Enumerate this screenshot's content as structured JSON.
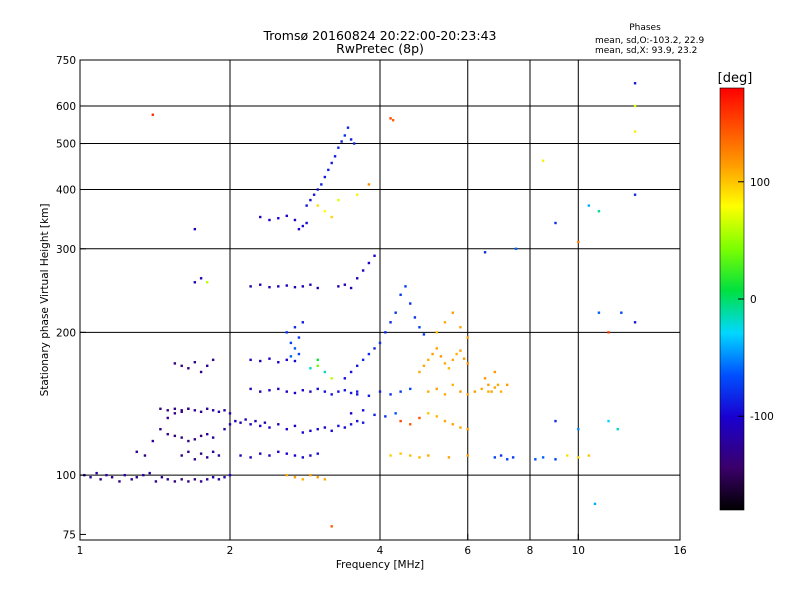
{
  "chart_data": {
    "type": "scatter",
    "title": "Tromsø 20160824 20:22:00-20:23:43",
    "subtitle": "RwPretec (8p)",
    "xlabel": "Frequency [MHz]",
    "ylabel": "Stationary phase Virtual Height [km]",
    "x_scale": "log",
    "y_scale": "log",
    "xlim": [
      1,
      16
    ],
    "ylim": [
      73,
      750
    ],
    "x_ticks": [
      {
        "value": 1,
        "label": "1"
      },
      {
        "value": 2,
        "label": "2"
      },
      {
        "value": 4,
        "label": "4"
      },
      {
        "value": 6,
        "label": "6"
      },
      {
        "value": 8,
        "label": "8"
      },
      {
        "value": 10,
        "label": "10"
      },
      {
        "value": 16,
        "label": "16"
      }
    ],
    "y_ticks": [
      {
        "value": 75,
        "label": "75"
      },
      {
        "value": 100,
        "label": "100"
      },
      {
        "value": 200,
        "label": "200"
      },
      {
        "value": 300,
        "label": "300"
      },
      {
        "value": 400,
        "label": "400"
      },
      {
        "value": 500,
        "label": "500"
      },
      {
        "value": 600,
        "label": "600"
      },
      {
        "value": 750,
        "label": "750"
      }
    ],
    "grid_x": [
      2,
      4,
      6,
      8,
      10
    ],
    "grid_y": [
      100,
      200,
      300,
      400,
      500,
      600
    ],
    "grid": true,
    "stats_header": "Phases",
    "stats_lines": [
      "mean, sd,O:-103.2, 22.9",
      "mean, sd,X:  93.9, 23.2"
    ],
    "colorbar": {
      "label": "[deg]",
      "range": [
        -180,
        180
      ],
      "ticks": [
        {
          "value": 100,
          "label": "100"
        },
        {
          "value": 0,
          "label": "0"
        },
        {
          "value": -100,
          "label": "-100"
        }
      ]
    },
    "points": [
      [
        1.02,
        100,
        -120
      ],
      [
        1.05,
        99,
        -125
      ],
      [
        1.08,
        101,
        -118
      ],
      [
        1.1,
        98,
        -130
      ],
      [
        1.13,
        100,
        -122
      ],
      [
        1.16,
        99,
        -128
      ],
      [
        1.2,
        97,
        -135
      ],
      [
        1.23,
        100,
        -120
      ],
      [
        1.27,
        98,
        -126
      ],
      [
        1.3,
        99,
        -131
      ],
      [
        1.34,
        100,
        -119
      ],
      [
        1.38,
        101,
        -124
      ],
      [
        1.42,
        97,
        -133
      ],
      [
        1.46,
        99,
        -127
      ],
      [
        1.5,
        98,
        -129
      ],
      [
        1.55,
        97,
        -136
      ],
      [
        1.6,
        98,
        -132
      ],
      [
        1.65,
        97,
        -138
      ],
      [
        1.7,
        98,
        -134
      ],
      [
        1.75,
        97,
        -130
      ],
      [
        1.8,
        98,
        -126
      ],
      [
        1.85,
        99,
        -121
      ],
      [
        1.9,
        98,
        -124
      ],
      [
        1.95,
        99,
        -118
      ],
      [
        2.0,
        100,
        -115
      ],
      [
        1.3,
        112,
        -128
      ],
      [
        1.35,
        110,
        -132
      ],
      [
        1.4,
        118,
        -125
      ],
      [
        1.45,
        125,
        -130
      ],
      [
        1.5,
        132,
        -127
      ],
      [
        1.55,
        135,
        -133
      ],
      [
        1.6,
        137,
        -129
      ],
      [
        1.65,
        138,
        -131
      ],
      [
        1.7,
        137,
        -126
      ],
      [
        1.75,
        136,
        -128
      ],
      [
        1.8,
        138,
        -122
      ],
      [
        1.85,
        137,
        -118
      ],
      [
        1.9,
        136,
        -115
      ],
      [
        1.95,
        137,
        -120
      ],
      [
        2.0,
        135,
        -117
      ],
      [
        1.45,
        138,
        -134
      ],
      [
        1.5,
        137,
        -135
      ],
      [
        1.55,
        138,
        -132
      ],
      [
        1.6,
        136,
        -137
      ],
      [
        1.65,
        138,
        -131
      ],
      [
        1.55,
        172,
        -138
      ],
      [
        1.6,
        170,
        -135
      ],
      [
        1.65,
        168,
        -137
      ],
      [
        1.7,
        173,
        -132
      ],
      [
        1.75,
        165,
        -136
      ],
      [
        1.8,
        170,
        -128
      ],
      [
        1.85,
        175,
        -133
      ],
      [
        1.5,
        122,
        -136
      ],
      [
        1.55,
        121,
        -139
      ],
      [
        1.6,
        120,
        -133
      ],
      [
        1.65,
        118,
        -138
      ],
      [
        1.7,
        119,
        -132
      ],
      [
        1.75,
        121,
        -137
      ],
      [
        1.8,
        122,
        -129
      ],
      [
        1.85,
        120,
        -125
      ],
      [
        1.6,
        110,
        -133
      ],
      [
        1.65,
        112,
        -135
      ],
      [
        1.7,
        108,
        -131
      ],
      [
        1.75,
        111,
        -134
      ],
      [
        1.8,
        109,
        -128
      ],
      [
        1.85,
        112,
        -126
      ],
      [
        1.9,
        110,
        -122
      ],
      [
        1.95,
        125,
        -120
      ],
      [
        2.0,
        128,
        -118
      ],
      [
        2.05,
        130,
        -112
      ],
      [
        2.1,
        129,
        -114
      ],
      [
        2.15,
        131,
        -110
      ],
      [
        2.2,
        128,
        -108
      ],
      [
        2.25,
        130,
        -112
      ],
      [
        2.3,
        127,
        -106
      ],
      [
        2.35,
        129,
        -110
      ],
      [
        2.4,
        126,
        -104
      ],
      [
        2.5,
        128,
        -108
      ],
      [
        2.6,
        125,
        -102
      ],
      [
        2.7,
        127,
        -105
      ],
      [
        2.8,
        123,
        -98
      ],
      [
        2.9,
        124,
        -100
      ],
      [
        3.0,
        125,
        -96
      ],
      [
        3.1,
        126,
        -102
      ],
      [
        3.2,
        124,
        -98
      ],
      [
        3.3,
        127,
        -94
      ],
      [
        3.4,
        126,
        -97
      ],
      [
        3.5,
        128,
        -92
      ],
      [
        3.6,
        130,
        -95
      ],
      [
        3.7,
        129,
        -90
      ],
      [
        2.1,
        110,
        -112
      ],
      [
        2.2,
        109,
        -110
      ],
      [
        2.3,
        111,
        -108
      ],
      [
        2.4,
        110,
        -106
      ],
      [
        2.5,
        112,
        -104
      ],
      [
        2.6,
        111,
        -102
      ],
      [
        2.7,
        110,
        -101
      ],
      [
        2.8,
        109,
        -99
      ],
      [
        2.9,
        110,
        -97
      ],
      [
        3.0,
        111,
        -95
      ],
      [
        2.2,
        152,
        -112
      ],
      [
        2.3,
        150,
        -110
      ],
      [
        2.4,
        151,
        -108
      ],
      [
        2.5,
        152,
        -106
      ],
      [
        2.6,
        150,
        -104
      ],
      [
        2.7,
        149,
        -102
      ],
      [
        2.8,
        151,
        -100
      ],
      [
        2.9,
        150,
        -98
      ],
      [
        3.0,
        152,
        -96
      ],
      [
        3.1,
        150,
        -94
      ],
      [
        3.2,
        148,
        -92
      ],
      [
        3.3,
        150,
        -95
      ],
      [
        3.4,
        151,
        -90
      ],
      [
        3.5,
        149,
        -92
      ],
      [
        3.6,
        150,
        -88
      ],
      [
        2.2,
        175,
        -110
      ],
      [
        2.3,
        174,
        -108
      ],
      [
        2.4,
        176,
        -106
      ],
      [
        2.5,
        173,
        -104
      ],
      [
        2.6,
        175,
        -100
      ],
      [
        2.7,
        174,
        -98
      ],
      [
        2.6,
        200,
        -78
      ],
      [
        2.65,
        190,
        -72
      ],
      [
        2.7,
        205,
        -82
      ],
      [
        2.75,
        195,
        -76
      ],
      [
        2.8,
        210,
        -88
      ],
      [
        2.7,
        185,
        -64
      ],
      [
        2.75,
        180,
        -70
      ],
      [
        2.65,
        178,
        -60
      ],
      [
        2.9,
        168,
        -20
      ],
      [
        3.0,
        170,
        40
      ],
      [
        3.1,
        165,
        -15
      ],
      [
        3.2,
        160,
        60
      ],
      [
        3.0,
        175,
        10
      ],
      [
        3.4,
        160,
        -96
      ],
      [
        3.5,
        165,
        -92
      ],
      [
        3.6,
        170,
        -88
      ],
      [
        3.7,
        175,
        -85
      ],
      [
        3.8,
        180,
        -82
      ],
      [
        3.9,
        185,
        -86
      ],
      [
        4.0,
        190,
        -80
      ],
      [
        4.1,
        200,
        -84
      ],
      [
        4.2,
        210,
        -82
      ],
      [
        4.3,
        220,
        -78
      ],
      [
        4.4,
        240,
        -76
      ],
      [
        4.5,
        250,
        -74
      ],
      [
        4.6,
        230,
        -80
      ],
      [
        4.7,
        215,
        -78
      ],
      [
        4.8,
        205,
        -72
      ],
      [
        4.9,
        198,
        -76
      ],
      [
        3.6,
        148,
        -92
      ],
      [
        3.8,
        147,
        -90
      ],
      [
        4.0,
        150,
        -88
      ],
      [
        4.2,
        148,
        -80
      ],
      [
        4.4,
        150,
        -74
      ],
      [
        4.6,
        152,
        -68
      ],
      [
        3.5,
        135,
        -100
      ],
      [
        3.7,
        137,
        -96
      ],
      [
        3.9,
        134,
        -86
      ],
      [
        4.1,
        133,
        -78
      ],
      [
        4.3,
        135,
        -64
      ],
      [
        4.8,
        165,
        110
      ],
      [
        4.9,
        170,
        112
      ],
      [
        5.0,
        175,
        108
      ],
      [
        5.1,
        180,
        114
      ],
      [
        5.2,
        185,
        112
      ],
      [
        5.3,
        178,
        118
      ],
      [
        5.4,
        172,
        108
      ],
      [
        5.5,
        168,
        104
      ],
      [
        5.6,
        175,
        110
      ],
      [
        5.7,
        180,
        106
      ],
      [
        5.8,
        183,
        112
      ],
      [
        5.9,
        176,
        114
      ],
      [
        6.0,
        172,
        118
      ],
      [
        5.0,
        150,
        108
      ],
      [
        5.2,
        152,
        112
      ],
      [
        5.4,
        148,
        110
      ],
      [
        5.6,
        155,
        106
      ],
      [
        5.8,
        150,
        116
      ],
      [
        6.0,
        148,
        112
      ],
      [
        6.2,
        150,
        114
      ],
      [
        6.4,
        152,
        110
      ],
      [
        6.6,
        150,
        108
      ],
      [
        6.8,
        153,
        112
      ],
      [
        7.0,
        150,
        106
      ],
      [
        7.2,
        155,
        114
      ],
      [
        5.0,
        135,
        100
      ],
      [
        5.2,
        133,
        104
      ],
      [
        5.4,
        130,
        110
      ],
      [
        5.6,
        128,
        112
      ],
      [
        5.8,
        126,
        108
      ],
      [
        6.0,
        125,
        114
      ],
      [
        5.2,
        200,
        102
      ],
      [
        5.4,
        210,
        108
      ],
      [
        5.6,
        220,
        114
      ],
      [
        5.8,
        205,
        110
      ],
      [
        6.0,
        195,
        112
      ],
      [
        4.4,
        130,
        150
      ],
      [
        4.6,
        128,
        140
      ],
      [
        4.8,
        132,
        145
      ],
      [
        6.5,
        160,
        118
      ],
      [
        6.6,
        155,
        114
      ],
      [
        6.7,
        150,
        112
      ],
      [
        6.8,
        165,
        116
      ],
      [
        6.9,
        155,
        110
      ],
      [
        4.2,
        110,
        96
      ],
      [
        4.4,
        111,
        98
      ],
      [
        4.6,
        110,
        102
      ],
      [
        4.8,
        109,
        104
      ],
      [
        5.0,
        110,
        110
      ],
      [
        5.5,
        109,
        112
      ],
      [
        6.0,
        110,
        114
      ],
      [
        6.8,
        109,
        -72
      ],
      [
        7.0,
        110,
        -78
      ],
      [
        7.2,
        108,
        -70
      ],
      [
        7.4,
        109,
        -74
      ],
      [
        8.2,
        108,
        -66
      ],
      [
        8.5,
        109,
        -60
      ],
      [
        9.0,
        108,
        -70
      ],
      [
        9.5,
        110,
        90
      ],
      [
        10.0,
        109,
        95
      ],
      [
        10.5,
        110,
        100
      ],
      [
        2.6,
        100,
        110
      ],
      [
        2.7,
        99,
        114
      ],
      [
        2.8,
        98,
        108
      ],
      [
        2.9,
        100,
        112
      ],
      [
        3.0,
        99,
        115
      ],
      [
        3.1,
        98,
        110
      ],
      [
        2.2,
        250,
        -118
      ],
      [
        2.3,
        252,
        -116
      ],
      [
        2.4,
        249,
        -114
      ],
      [
        2.5,
        250,
        -112
      ],
      [
        2.6,
        251,
        -110
      ],
      [
        2.7,
        249,
        -112
      ],
      [
        2.8,
        250,
        -110
      ],
      [
        2.9,
        252,
        -114
      ],
      [
        3.0,
        248,
        -112
      ],
      [
        3.3,
        250,
        -116
      ],
      [
        3.4,
        252,
        -112
      ],
      [
        3.5,
        248,
        -110
      ],
      [
        3.6,
        260,
        -108
      ],
      [
        3.7,
        270,
        -106
      ],
      [
        3.8,
        280,
        -104
      ],
      [
        3.9,
        290,
        -102
      ],
      [
        2.3,
        350,
        -108
      ],
      [
        2.4,
        345,
        -104
      ],
      [
        2.5,
        348,
        -100
      ],
      [
        2.6,
        352,
        -106
      ],
      [
        2.7,
        345,
        -102
      ],
      [
        2.75,
        330,
        -100
      ],
      [
        2.8,
        335,
        -96
      ],
      [
        2.85,
        340,
        -98
      ],
      [
        2.85,
        370,
        -92
      ],
      [
        2.9,
        380,
        -96
      ],
      [
        2.95,
        390,
        -90
      ],
      [
        3.0,
        400,
        -94
      ],
      [
        3.05,
        410,
        -88
      ],
      [
        3.1,
        425,
        -92
      ],
      [
        3.15,
        440,
        -86
      ],
      [
        3.2,
        455,
        -90
      ],
      [
        3.25,
        470,
        -88
      ],
      [
        3.3,
        490,
        -84
      ],
      [
        3.35,
        505,
        -86
      ],
      [
        3.4,
        520,
        -82
      ],
      [
        3.45,
        540,
        -84
      ],
      [
        3.5,
        510,
        -88
      ],
      [
        3.55,
        500,
        -84
      ],
      [
        3.0,
        370,
        90
      ],
      [
        3.1,
        360,
        80
      ],
      [
        3.2,
        350,
        95
      ],
      [
        3.3,
        380,
        70
      ],
      [
        3.6,
        390,
        85
      ],
      [
        3.8,
        410,
        120
      ],
      [
        1.4,
        575,
        160
      ],
      [
        4.2,
        565,
        150
      ],
      [
        4.25,
        560,
        140
      ],
      [
        13.0,
        670,
        -90
      ],
      [
        13.0,
        600,
        70
      ],
      [
        13.0,
        530,
        85
      ],
      [
        1.7,
        330,
        -110
      ],
      [
        1.75,
        260,
        -112
      ],
      [
        1.8,
        255,
        60
      ],
      [
        1.7,
        255,
        -114
      ],
      [
        7.5,
        300,
        -60
      ],
      [
        9.0,
        340,
        -80
      ],
      [
        10.0,
        310,
        130
      ],
      [
        10.5,
        370,
        -40
      ],
      [
        11.0,
        360,
        -10
      ],
      [
        12.2,
        220,
        -70
      ],
      [
        13.0,
        390,
        -80
      ],
      [
        13.0,
        210,
        -90
      ],
      [
        11.5,
        200,
        155
      ],
      [
        11.0,
        220,
        -60
      ],
      [
        9.0,
        130,
        -80
      ],
      [
        10.0,
        125,
        -50
      ],
      [
        11.5,
        130,
        -30
      ],
      [
        12.0,
        125,
        -20
      ],
      [
        10.8,
        87,
        -40
      ],
      [
        3.2,
        78,
        140
      ],
      [
        8.5,
        460,
        85
      ],
      [
        6.5,
        295,
        -80
      ]
    ]
  }
}
